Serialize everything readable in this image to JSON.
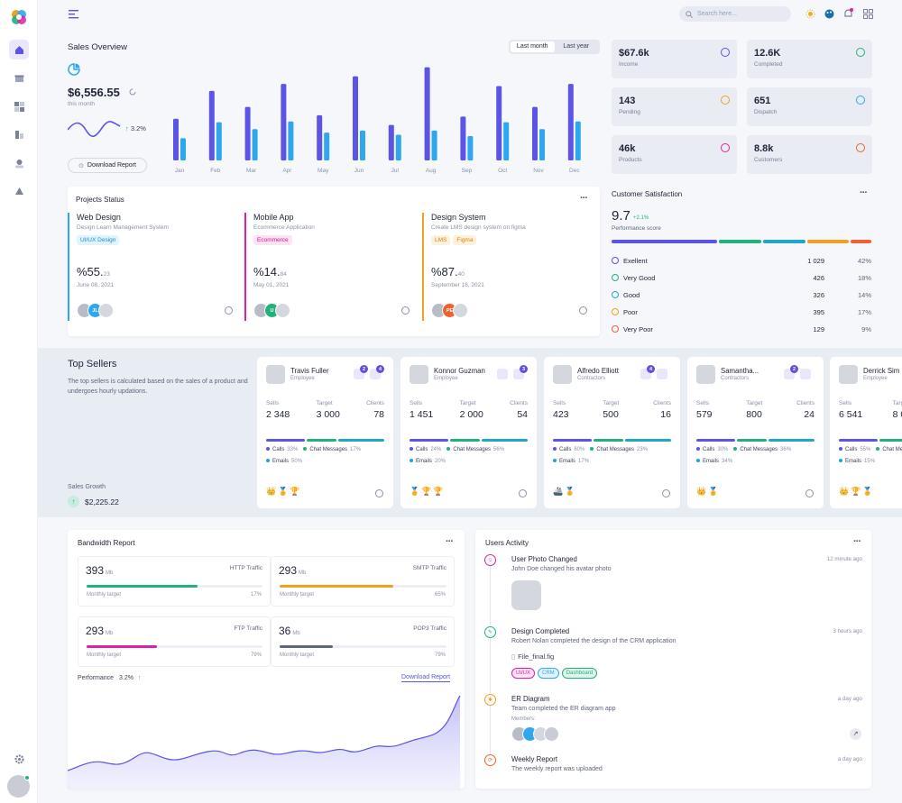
{
  "header": {
    "search_placeholder": "Search here..."
  },
  "sales": {
    "title": "Sales Overview",
    "seg_last_month": "Last month",
    "seg_last_year": "Last year",
    "amount": "$6,556.55",
    "period": "this month",
    "growth": "3.2%",
    "download": "Download Report"
  },
  "chart_data": {
    "type": "bar",
    "categories": [
      "Jan",
      "Feb",
      "Mar",
      "Apr",
      "May",
      "Jun",
      "Jul",
      "Aug",
      "Sep",
      "Oct",
      "Nov",
      "Dec"
    ],
    "series": [
      {
        "values": [
          60,
          100,
          77,
          110,
          65,
          121,
          51,
          134,
          63,
          107,
          77,
          110
        ]
      },
      {
        "values": [
          32,
          55,
          45,
          56,
          40,
          43,
          37,
          43,
          35,
          55,
          45,
          56
        ]
      }
    ],
    "colors": [
      "#5b54e4",
      "#2ea7ee"
    ]
  },
  "tiles": [
    {
      "value": "$67.6k",
      "label": "Income",
      "icon": "dollar-icon",
      "color": "#5b54e4"
    },
    {
      "value": "12.6K",
      "label": "Completed",
      "icon": "check-icon",
      "color": "#22b07d"
    },
    {
      "value": "143",
      "label": "Pending",
      "icon": "clock-icon",
      "color": "#f0a020"
    },
    {
      "value": "651",
      "label": "Dispatch",
      "icon": "truck-icon",
      "color": "#2ea7ee"
    },
    {
      "value": "46k",
      "label": "Products",
      "icon": "box-icon",
      "color": "#e020a0"
    },
    {
      "value": "8.8k",
      "label": "Customers",
      "icon": "users-icon",
      "color": "#f06030"
    }
  ],
  "projects": {
    "title": "Projects Status",
    "items": [
      {
        "name": "Web Design",
        "desc": "Design Learn Management System",
        "tags": [
          "UI/UX Design"
        ],
        "pct": "%55.",
        "pct_small": "23",
        "date": "June 08, 2021",
        "color": "#2ea7ee",
        "avatars": [
          "",
          "JL",
          ""
        ]
      },
      {
        "name": "Mobile App",
        "desc": "Ecommerce Application",
        "tags": [
          "Ecommerce"
        ],
        "pct": "%14.",
        "pct_small": "84",
        "date": "May 01, 2021",
        "color": "#e020a0",
        "avatars": [
          "",
          "U",
          ""
        ]
      },
      {
        "name": "Design System",
        "desc": "Create LMS design system on figma",
        "tags": [
          "LMS",
          "Figma"
        ],
        "pct": "%87.",
        "pct_small": "40",
        "date": "September 16, 2021",
        "color": "#f0a020",
        "avatars": [
          "",
          "PE",
          ""
        ]
      }
    ]
  },
  "satisfaction": {
    "title": "Customer Satisfaction",
    "score": "9.7",
    "delta": "+2.1%",
    "label": "Performance score",
    "rows": [
      {
        "name": "Exellent",
        "count": "1 029",
        "pct": "42%",
        "color": "#5b54e4"
      },
      {
        "name": "Very Good",
        "count": "426",
        "pct": "18%",
        "color": "#22b07d"
      },
      {
        "name": "Good",
        "count": "326",
        "pct": "14%",
        "color": "#1fa7c8"
      },
      {
        "name": "Poor",
        "count": "395",
        "pct": "17%",
        "color": "#f0a020"
      },
      {
        "name": "Very Poor",
        "count": "129",
        "pct": "9%",
        "color": "#f06030"
      }
    ]
  },
  "sellers": {
    "title": "Top Sellers",
    "desc": "The top sellers is calculated based on the sales of a product and undergoes hourly updations.",
    "growth_label": "Sales Growth",
    "growth_value": "$2,225.22",
    "labels": {
      "sells": "Sells",
      "target": "Target",
      "clients": "Clients",
      "calls": "Calls",
      "chat": "Chat Messages",
      "emails": "Emails"
    },
    "items": [
      {
        "name": "Travis Fuller",
        "role": "Employee",
        "sells": "2 348",
        "target": "3 000",
        "clients": "78",
        "calls": "33%",
        "chat": "17%",
        "emails": "50%",
        "b1": "2",
        "b2": "4",
        "awards": [
          "👑",
          "🏅",
          "🏆"
        ]
      },
      {
        "name": "Konnor Guzman",
        "role": "Employee",
        "sells": "1 451",
        "target": "2 000",
        "clients": "54",
        "calls": "24%",
        "chat": "56%",
        "emails": "20%",
        "b1": "",
        "b2": "3",
        "awards": [
          "🏅",
          "🏆",
          "🏆"
        ]
      },
      {
        "name": "Alfredo Elliott",
        "role": "Contractors",
        "sells": "423",
        "target": "500",
        "clients": "16",
        "calls": "60%",
        "chat": "23%",
        "emails": "17%",
        "b1": "4",
        "b2": "",
        "awards": [
          "🚢",
          "🏅"
        ]
      },
      {
        "name": "Samantha...",
        "role": "Contractors",
        "sells": "579",
        "target": "800",
        "clients": "24",
        "calls": "30%",
        "chat": "36%",
        "emails": "34%",
        "b1": "2",
        "b2": "",
        "awards": [
          "👑",
          "🏅"
        ]
      },
      {
        "name": "Derrick Sim",
        "role": "Employee",
        "sells": "6 541",
        "target": "8 0",
        "clients": "",
        "calls": "55%",
        "chat": "",
        "emails": "15%",
        "b1": "",
        "b2": "",
        "awards": [
          "👑",
          "🏆",
          "🏅"
        ]
      }
    ]
  },
  "bandwidth": {
    "title": "Bandwidth Report",
    "items": [
      {
        "value": "393",
        "unit": "Mb",
        "type": "HTTP Traffic",
        "target_label": "Monthly target",
        "pct": "17%",
        "fill": 0.63,
        "color": "#22b07d"
      },
      {
        "value": "293",
        "unit": "Mb",
        "type": "SMTP Traffic",
        "target_label": "Monthly target",
        "pct": "65%",
        "fill": 0.68,
        "color": "#f0a020"
      },
      {
        "value": "293",
        "unit": "Mb",
        "type": "FTP Traffic",
        "target_label": "Monthly target",
        "pct": "79%",
        "fill": 0.4,
        "color": "#e020a0"
      },
      {
        "value": "36",
        "unit": "Mb",
        "type": "POP3 Traffic",
        "target_label": "Monthly target",
        "pct": "79%",
        "fill": 0.32,
        "color": "#5f667c"
      }
    ],
    "perf_label": "Performance",
    "perf_value": "3.2%",
    "download": "Download Report"
  },
  "activity": {
    "title": "Users Activity",
    "items": [
      {
        "title": "User Photo Changed",
        "desc": "John Doe changed his avatar photo",
        "time": "12 minute ago",
        "color": "#e020a0"
      },
      {
        "title": "Design Completed",
        "desc": "Robert Nolan completed the design of the CRM application",
        "time": "3 hours ago",
        "file": "File_final.fig",
        "tags": [
          "UI/UX",
          "CRM",
          "Dashboard"
        ],
        "color": "#22b07d"
      },
      {
        "title": "ER Diagram",
        "desc": "Team completed the ER diagram app",
        "time": "a day ago",
        "members": "Members:",
        "color": "#f0a020"
      },
      {
        "title": "Weekly Report",
        "desc": "The weekly report was uploaded",
        "time": "a day ago",
        "color": "#f06030"
      }
    ]
  }
}
